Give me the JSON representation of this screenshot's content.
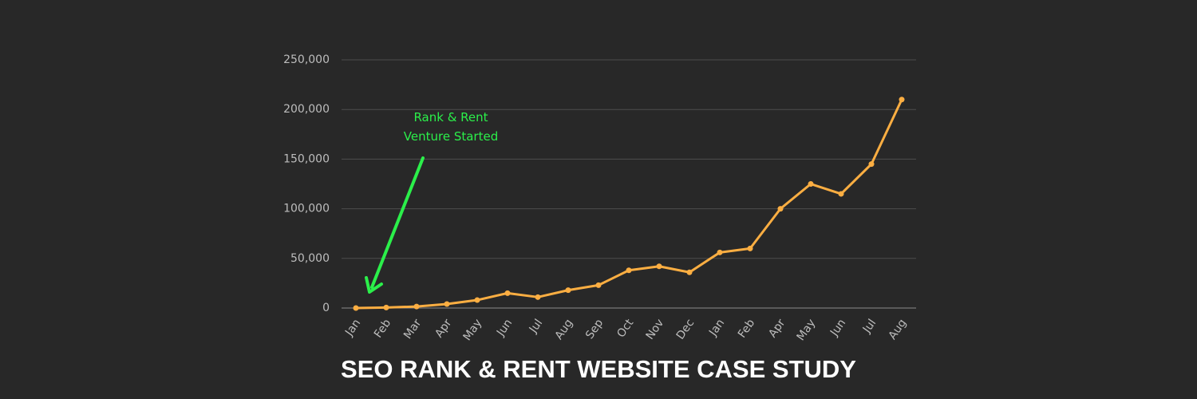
{
  "chart_data": {
    "type": "line",
    "title": "SEO RANK & RENT WEBSITE CASE STUDY",
    "annotation": [
      "Rank & Rent",
      "Venture Started"
    ],
    "categories": [
      "Jan",
      "Feb",
      "Mar",
      "Apr",
      "May",
      "Jun",
      "Jul",
      "Aug",
      "Sep",
      "Oct",
      "Nov",
      "Dec",
      "Jan",
      "Feb",
      "Apr",
      "May",
      "Jun",
      "Jul",
      "Aug"
    ],
    "values": [
      0,
      500,
      1500,
      4000,
      8000,
      15000,
      11000,
      18000,
      23000,
      38000,
      42000,
      36000,
      56000,
      60000,
      100000,
      125000,
      115000,
      145000,
      210000
    ],
    "color": "#fbae42",
    "annotation_color": "#2bef4a",
    "ylim": [
      0,
      250000
    ],
    "yticks": [
      0,
      {
        "value": 50000,
        "label": "50,000"
      },
      {
        "value": 100000,
        "label": "100,000"
      },
      {
        "value": 150000,
        "label": "150,000"
      },
      {
        "value": 200000,
        "label": "200,000"
      },
      {
        "value": 250000,
        "label": "250,000"
      }
    ],
    "grid": true
  }
}
